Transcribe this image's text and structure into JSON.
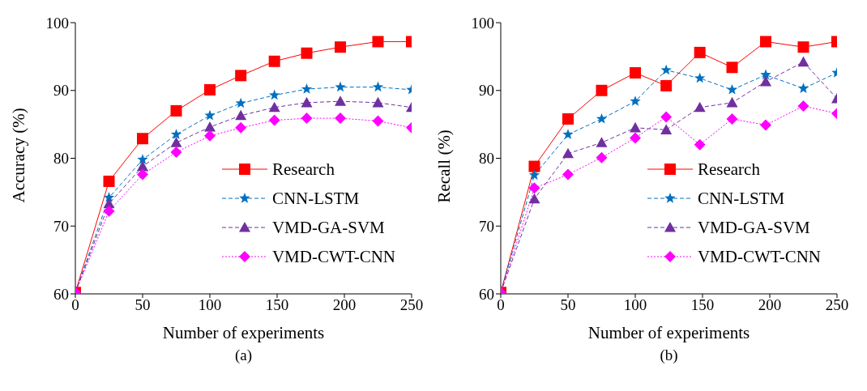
{
  "chart_data": [
    {
      "type": "line",
      "xlabel": "Number of experiments",
      "ylabel": "Accuracy (%)",
      "annotations": [
        "(a)"
      ],
      "xlim": [
        0,
        250
      ],
      "xticks": [
        0,
        50,
        100,
        150,
        200,
        250
      ],
      "ylim": [
        60,
        100
      ],
      "yticks": [
        60,
        70,
        80,
        90,
        100
      ],
      "legend": "bottom right",
      "x": [
        0,
        25,
        50,
        75,
        100,
        123,
        148,
        172,
        197,
        225,
        250
      ],
      "series": [
        {
          "name": "Research",
          "color": "#ff0000",
          "marker": "square",
          "line_style": "solid",
          "values": [
            60.2,
            76.6,
            82.9,
            87.0,
            90.1,
            92.2,
            94.3,
            95.5,
            96.4,
            97.2,
            97.2
          ]
        },
        {
          "name": "CNN-LSTM",
          "color": "#0070c0",
          "marker": "star",
          "line_style": "dashed",
          "values": [
            60.2,
            74.2,
            79.8,
            83.5,
            86.3,
            88.1,
            89.3,
            90.2,
            90.5,
            90.5,
            90.1
          ]
        },
        {
          "name": "VMD-GA-SVM",
          "color": "#7030a0",
          "marker": "triangle",
          "line_style": "dashed",
          "values": [
            60.2,
            73.3,
            78.8,
            82.3,
            84.6,
            86.3,
            87.5,
            88.2,
            88.4,
            88.2,
            87.5
          ]
        },
        {
          "name": "VMD-CWT-CNN",
          "color": "#ff00ff",
          "marker": "diamond",
          "line_style": "dotted",
          "values": [
            60.2,
            72.2,
            77.6,
            80.9,
            83.3,
            84.5,
            85.6,
            85.9,
            85.9,
            85.5,
            84.5
          ]
        }
      ]
    },
    {
      "type": "line",
      "xlabel": "Number of experiments",
      "ylabel": "Recall (%)",
      "annotations": [
        "(b)"
      ],
      "xlim": [
        0,
        250
      ],
      "xticks": [
        0,
        50,
        100,
        150,
        200,
        250
      ],
      "ylim": [
        60,
        100
      ],
      "yticks": [
        60,
        70,
        80,
        90,
        100
      ],
      "legend": "bottom right",
      "x": [
        0,
        25,
        50,
        75,
        100,
        123,
        148,
        172,
        197,
        225,
        250
      ],
      "series": [
        {
          "name": "Research",
          "color": "#ff0000",
          "marker": "square",
          "line_style": "solid",
          "values": [
            60.2,
            78.8,
            85.8,
            90.0,
            92.6,
            90.7,
            95.6,
            93.4,
            97.2,
            96.4,
            97.2
          ]
        },
        {
          "name": "CNN-LSTM",
          "color": "#0070c0",
          "marker": "star",
          "line_style": "dashed",
          "values": [
            60.2,
            77.5,
            83.5,
            85.8,
            88.4,
            93.0,
            91.8,
            90.1,
            92.3,
            90.3,
            92.6
          ]
        },
        {
          "name": "VMD-GA-SVM",
          "color": "#7030a0",
          "marker": "triangle",
          "line_style": "dashed",
          "values": [
            60.2,
            74.0,
            80.7,
            82.3,
            84.5,
            84.2,
            87.5,
            88.2,
            91.3,
            94.2,
            88.8
          ]
        },
        {
          "name": "VMD-CWT-CNN",
          "color": "#ff00ff",
          "marker": "diamond",
          "line_style": "dotted",
          "values": [
            60.2,
            75.6,
            77.6,
            80.1,
            83.0,
            86.1,
            82.0,
            85.8,
            84.9,
            87.7,
            86.6
          ]
        }
      ]
    }
  ]
}
